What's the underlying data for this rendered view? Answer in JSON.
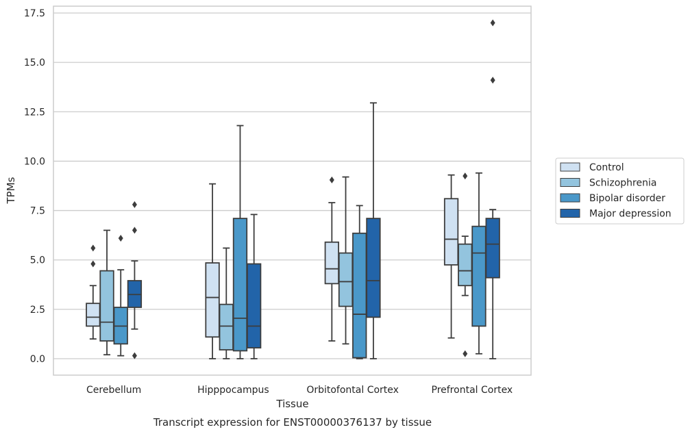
{
  "chart_data": {
    "type": "box",
    "caption": "Transcript expression for ENST00000376137 by tissue",
    "xlabel": "Tissue",
    "ylabel": "TPMs",
    "ylim": [
      -0.8,
      17.8
    ],
    "yticks": [
      "0.0",
      "2.5",
      "5.0",
      "7.5",
      "10.0",
      "12.5",
      "15.0",
      "17.5"
    ],
    "ytick_values": [
      0,
      2.5,
      5,
      7.5,
      10,
      12.5,
      15,
      17.5
    ],
    "grid": "horizontal",
    "legend_position": "right",
    "categories": [
      "Cerebellum",
      "Hipppocampus",
      "Orbitofontal Cortex",
      "Prefrontal Cortex"
    ],
    "series": [
      {
        "name": "Control",
        "color": "#cfe1f2",
        "boxes": [
          {
            "whislo": 1.0,
            "q1": 1.65,
            "med": 2.1,
            "q3": 2.8,
            "whishi": 3.7,
            "fliers": [
              4.8,
              5.6
            ]
          },
          {
            "whislo": 0.0,
            "q1": 1.1,
            "med": 3.1,
            "q3": 4.85,
            "whishi": 8.85,
            "fliers": []
          },
          {
            "whislo": 0.9,
            "q1": 3.8,
            "med": 4.55,
            "q3": 5.9,
            "whishi": 7.9,
            "fliers": [
              9.05
            ]
          },
          {
            "whislo": 1.05,
            "q1": 4.75,
            "med": 6.05,
            "q3": 8.1,
            "whishi": 9.3,
            "fliers": []
          }
        ]
      },
      {
        "name": "Schizophrenia",
        "color": "#93c4de",
        "boxes": [
          {
            "whislo": 0.2,
            "q1": 0.9,
            "med": 1.85,
            "q3": 4.45,
            "whishi": 6.5,
            "fliers": []
          },
          {
            "whislo": 0.0,
            "q1": 0.45,
            "med": 1.65,
            "q3": 2.75,
            "whishi": 5.6,
            "fliers": []
          },
          {
            "whislo": 0.75,
            "q1": 2.65,
            "med": 3.9,
            "q3": 5.35,
            "whishi": 9.2,
            "fliers": []
          },
          {
            "whislo": 3.2,
            "q1": 3.7,
            "med": 4.45,
            "q3": 5.8,
            "whishi": 6.2,
            "fliers": [
              0.25,
              9.25
            ]
          }
        ]
      },
      {
        "name": "Bipolar disorder",
        "color": "#4a98c9",
        "boxes": [
          {
            "whislo": 0.15,
            "q1": 0.75,
            "med": 1.65,
            "q3": 2.6,
            "whishi": 4.5,
            "fliers": [
              6.1
            ]
          },
          {
            "whislo": 0.0,
            "q1": 0.4,
            "med": 2.05,
            "q3": 7.1,
            "whishi": 11.8,
            "fliers": []
          },
          {
            "whislo": 0.0,
            "q1": 0.05,
            "med": 2.25,
            "q3": 6.35,
            "whishi": 7.75,
            "fliers": []
          },
          {
            "whislo": 0.25,
            "q1": 1.65,
            "med": 5.35,
            "q3": 6.7,
            "whishi": 9.4,
            "fliers": []
          }
        ]
      },
      {
        "name": "Major depression",
        "color": "#2264a9",
        "boxes": [
          {
            "whislo": 1.5,
            "q1": 2.6,
            "med": 3.25,
            "q3": 3.95,
            "whishi": 4.95,
            "fliers": [
              0.15,
              6.5,
              7.8
            ]
          },
          {
            "whislo": 0.0,
            "q1": 0.55,
            "med": 1.65,
            "q3": 4.8,
            "whishi": 7.3,
            "fliers": []
          },
          {
            "whislo": 0.0,
            "q1": 2.1,
            "med": 3.95,
            "q3": 7.1,
            "whishi": 12.95,
            "fliers": []
          },
          {
            "whislo": 0.0,
            "q1": 4.1,
            "med": 5.8,
            "q3": 7.1,
            "whishi": 7.55,
            "fliers": [
              14.1,
              17.0
            ]
          }
        ]
      }
    ]
  }
}
